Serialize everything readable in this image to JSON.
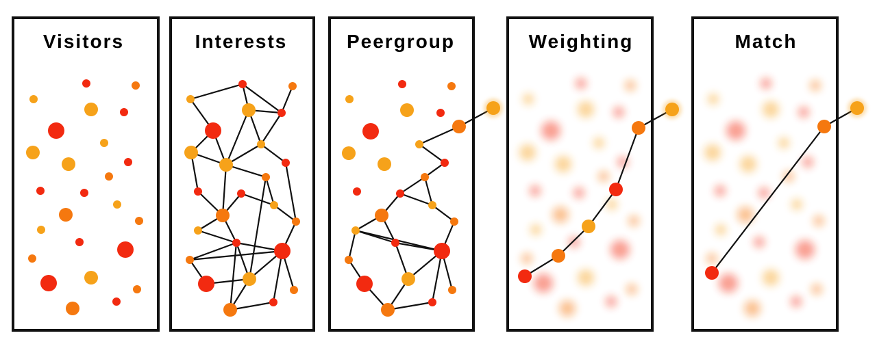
{
  "colors": {
    "red": "#F22A10",
    "orange": "#F5780F",
    "amber": "#F6A21A",
    "frame": "#111111",
    "background": "#FFFFFF"
  },
  "panels": [
    {
      "id": "visitors",
      "title": "Visitors"
    },
    {
      "id": "interests",
      "title": "Interests"
    },
    {
      "id": "peergroup",
      "title": "Peergroup"
    },
    {
      "id": "weighting",
      "title": "Weighting"
    },
    {
      "id": "match",
      "title": "Match"
    }
  ]
}
